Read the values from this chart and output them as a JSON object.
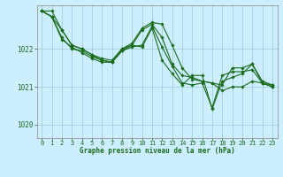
{
  "bg_color": "#cceeff",
  "line_color": "#1a6b1a",
  "grid_color": "#99cccc",
  "xlabel": "Graphe pression niveau de la mer (hPa)",
  "ylim": [
    1019.65,
    1023.15
  ],
  "yticks": [
    1020,
    1021,
    1022
  ],
  "xlim": [
    -0.5,
    23.5
  ],
  "xticks": [
    0,
    1,
    2,
    3,
    4,
    5,
    6,
    7,
    8,
    9,
    10,
    11,
    12,
    13,
    14,
    15,
    16,
    17,
    18,
    19,
    20,
    21,
    22,
    23
  ],
  "series": [
    [
      1023.0,
      1023.0,
      1022.5,
      1022.1,
      1022.0,
      1021.85,
      1021.75,
      1021.7,
      1022.0,
      1022.15,
      1022.55,
      1022.7,
      1022.65,
      1022.1,
      1021.5,
      1021.2,
      1021.15,
      1021.1,
      1020.9,
      1021.0,
      1021.0,
      1021.15,
      1021.1,
      1021.05
    ],
    [
      1023.0,
      1022.85,
      1022.3,
      1022.0,
      1021.95,
      1021.8,
      1021.7,
      1021.65,
      1021.95,
      1022.05,
      1022.1,
      1022.6,
      1022.05,
      1021.55,
      1021.1,
      1021.05,
      1021.1,
      1020.45,
      1021.3,
      1021.4,
      1021.4,
      1021.45,
      1021.1,
      1021.0
    ],
    [
      1023.0,
      1022.85,
      1022.25,
      1022.05,
      1021.9,
      1021.75,
      1021.65,
      1021.65,
      1021.95,
      1022.1,
      1022.05,
      1022.55,
      1021.7,
      1021.35,
      1021.05,
      1021.3,
      1021.3,
      1020.42,
      1021.15,
      1021.25,
      1021.35,
      1021.6,
      1021.15,
      1021.05
    ],
    [
      1023.0,
      1022.85,
      1022.5,
      1022.1,
      1022.0,
      1021.85,
      1021.7,
      1021.65,
      1022.0,
      1022.1,
      1022.5,
      1022.65,
      1022.3,
      1021.6,
      1021.3,
      1021.25,
      1021.15,
      1021.1,
      1021.05,
      1021.5,
      1021.5,
      1021.6,
      1021.1,
      1021.0
    ]
  ]
}
